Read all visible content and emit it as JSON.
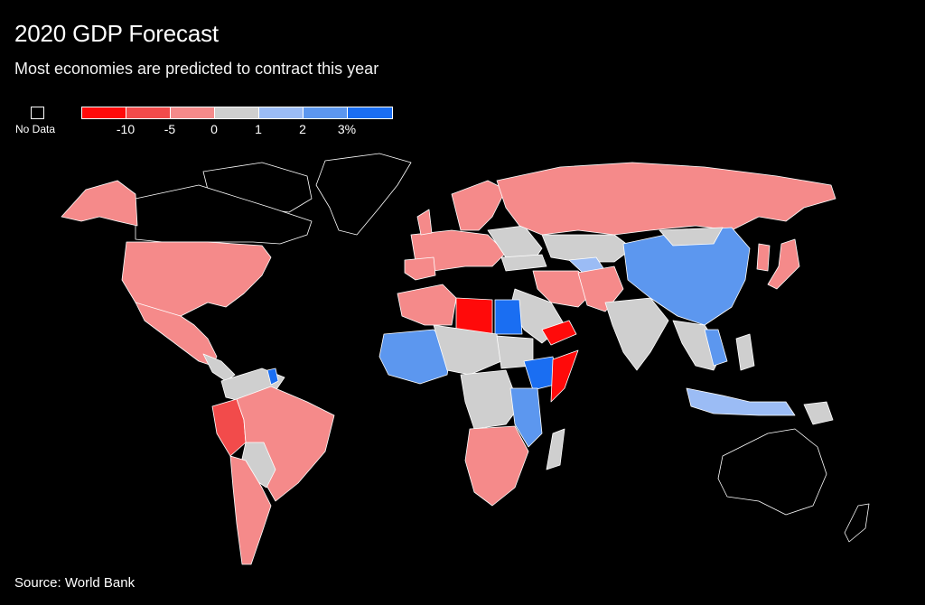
{
  "title": "2020 GDP Forecast",
  "subtitle": "Most economies are predicted to contract this year",
  "legend": {
    "no_data_label": "No Data",
    "no_data_color": "#000000",
    "bins": [
      {
        "color": "#ff0a0a",
        "range": "< -10"
      },
      {
        "color": "#f24b4b",
        "range": "-10 to -5"
      },
      {
        "color": "#f58a8a",
        "range": "-5 to 0"
      },
      {
        "color": "#cfcfcf",
        "range": "0 to 1"
      },
      {
        "color": "#9bbcf5",
        "range": "1 to 2"
      },
      {
        "color": "#5c97ef",
        "range": "2 to 3"
      },
      {
        "color": "#1a6ef2",
        "range": "> 3"
      }
    ],
    "ticks": [
      "-10",
      "-5",
      "0",
      "1",
      "2",
      "3%"
    ]
  },
  "source": "Source: World Bank"
}
